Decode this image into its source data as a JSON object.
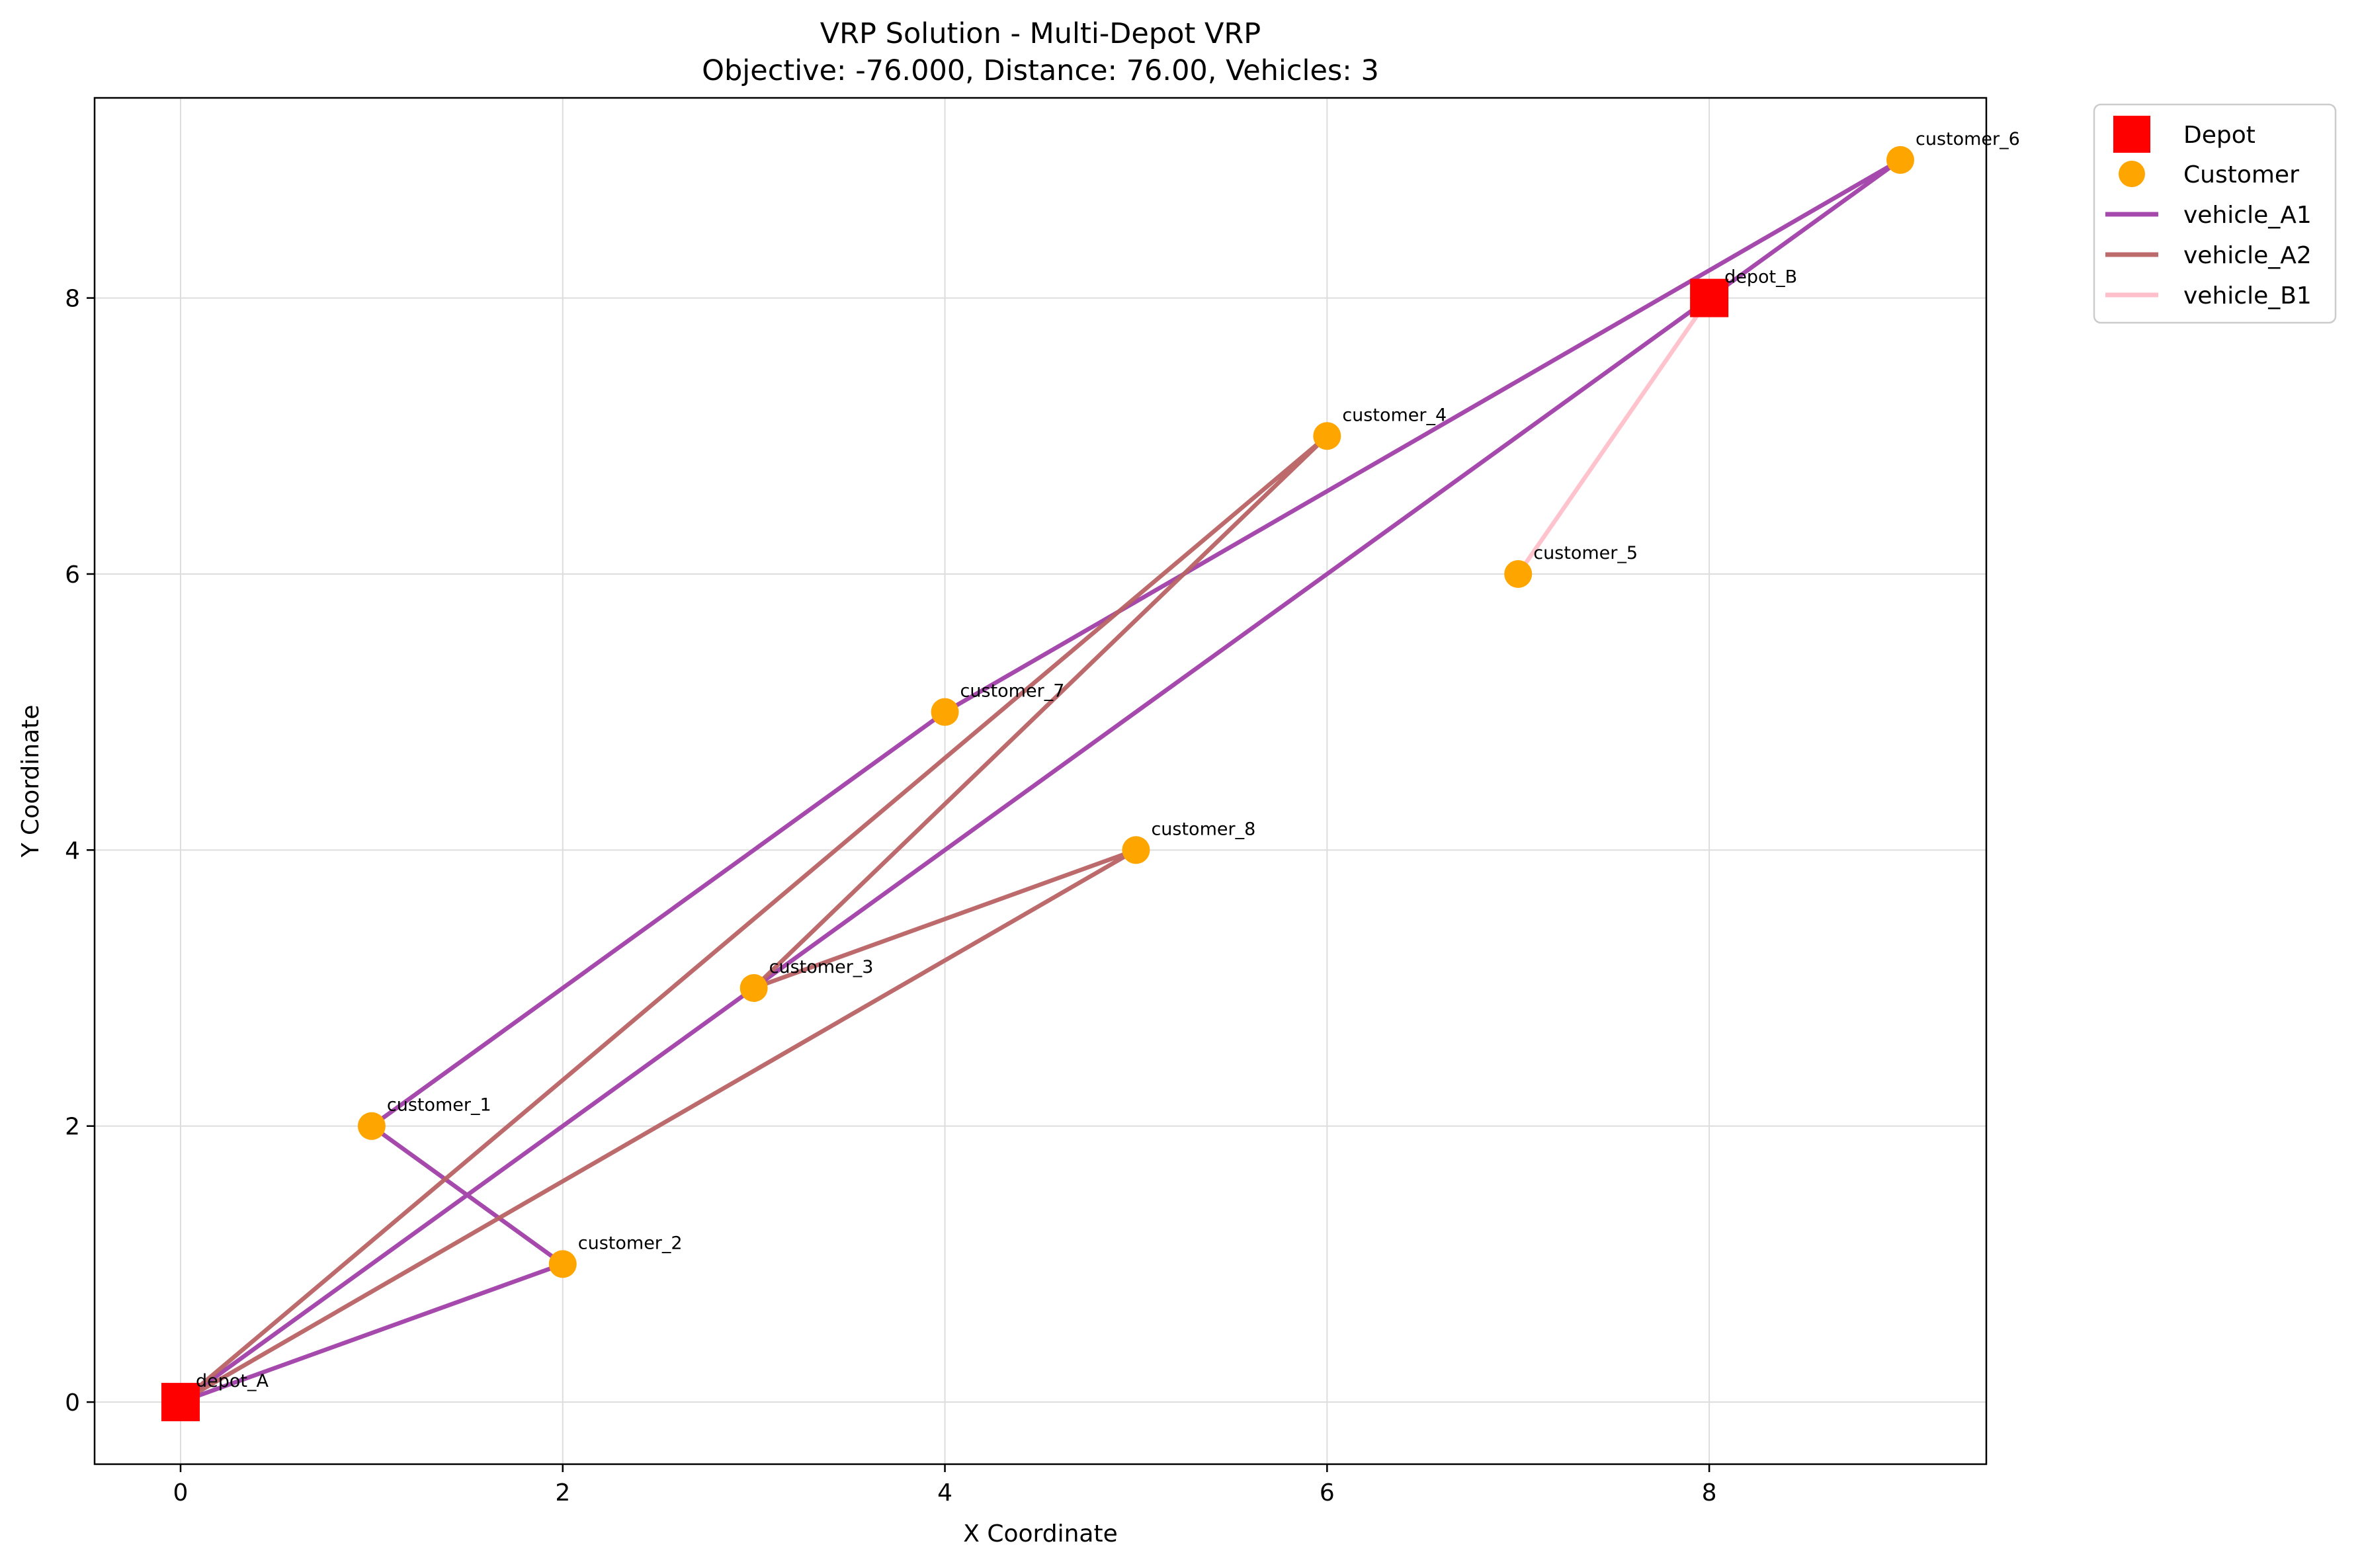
{
  "chart_data": {
    "type": "scatter",
    "title": "VRP Solution - Multi-Depot VRP",
    "subtitle": "Objective: -76.000, Distance: 76.00, Vehicles: 3",
    "xlabel": "X Coordinate",
    "ylabel": "Y Coordinate",
    "xlim": [
      -0.45,
      9.45
    ],
    "ylim": [
      -0.45,
      9.45
    ],
    "xticks": [
      0,
      2,
      4,
      6,
      8
    ],
    "yticks": [
      0,
      2,
      4,
      6,
      8
    ],
    "grid": true,
    "legend_position": "outside-top-right",
    "depots": [
      {
        "name": "depot_A",
        "x": 0,
        "y": 0
      },
      {
        "name": "depot_B",
        "x": 8,
        "y": 8
      }
    ],
    "customers": [
      {
        "name": "customer_1",
        "x": 1,
        "y": 2
      },
      {
        "name": "customer_2",
        "x": 2,
        "y": 1
      },
      {
        "name": "customer_3",
        "x": 3,
        "y": 3
      },
      {
        "name": "customer_4",
        "x": 6,
        "y": 7
      },
      {
        "name": "customer_5",
        "x": 7,
        "y": 6
      },
      {
        "name": "customer_6",
        "x": 9,
        "y": 9
      },
      {
        "name": "customer_7",
        "x": 4,
        "y": 5
      },
      {
        "name": "customer_8",
        "x": 5,
        "y": 4
      }
    ],
    "routes": [
      {
        "name": "vehicle_A1",
        "color": "#a040a8",
        "path": [
          [
            0,
            0
          ],
          [
            2,
            1
          ],
          [
            1,
            2
          ],
          [
            4,
            5
          ],
          [
            9,
            9
          ],
          [
            3,
            3
          ],
          [
            0,
            0
          ]
        ]
      },
      {
        "name": "vehicle_A2",
        "color": "#b86264",
        "path": [
          [
            0,
            0
          ],
          [
            6,
            7
          ],
          [
            3,
            3
          ],
          [
            5,
            4
          ],
          [
            0,
            0
          ]
        ]
      },
      {
        "name": "vehicle_B1",
        "color": "#ffc0cb",
        "path": [
          [
            8,
            8
          ],
          [
            7,
            6
          ],
          [
            8,
            8
          ]
        ]
      }
    ],
    "legend": [
      {
        "label": "Depot",
        "kind": "depot",
        "color": "#ff0000"
      },
      {
        "label": "Customer",
        "kind": "customer",
        "color": "#ffa500"
      },
      {
        "label": "vehicle_A1",
        "kind": "line",
        "color": "#a040a8"
      },
      {
        "label": "vehicle_A2",
        "kind": "line",
        "color": "#b86264"
      },
      {
        "label": "vehicle_B1",
        "kind": "line",
        "color": "#ffc0cb"
      }
    ]
  }
}
